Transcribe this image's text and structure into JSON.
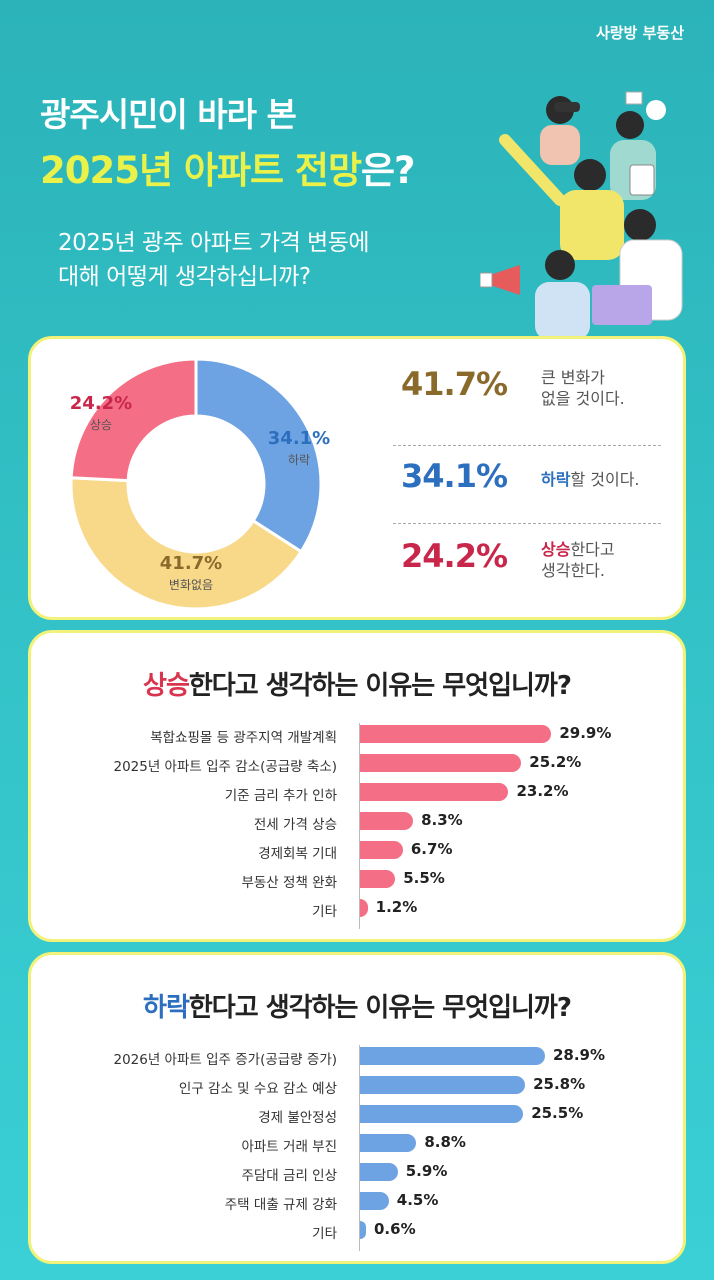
{
  "brand": {
    "prefix": "사랑방",
    "suffix": "부동산"
  },
  "header": {
    "title_line1": "광주시민이 바라 본",
    "title_line2_highlight": "2025년 아파트 전망",
    "title_line2_tail": "은?",
    "question_line1": "2025년 광주 아파트 가격 변동에",
    "question_line2": "대해 어떻게 생각하십니까?"
  },
  "colors": {
    "up": "#f46f86",
    "down": "#6ea3e3",
    "neutral": "#f8d98a",
    "stay_text": "#8a6a2b",
    "down_text": "#2c6fbf",
    "up_text": "#c8264a"
  },
  "chart_data": [
    {
      "type": "pie",
      "title": "2025년 광주 아파트 가격 변동에 대해 어떻게 생각하십니까?",
      "slices": [
        {
          "label": "하락",
          "value": 34.1,
          "display": "34.1%"
        },
        {
          "label": "변화없음",
          "value": 41.7,
          "display": "41.7%"
        },
        {
          "label": "상승",
          "value": 24.2,
          "display": "24.2%"
        }
      ]
    },
    {
      "type": "bar",
      "title": "상승한다고 생각하는 이유는 무엇입니까?",
      "categories": [
        "복합쇼핑몰 등 광주지역 개발계획",
        "2025년 아파트 입주 감소(공급량 축소)",
        "기준 금리 추가 인하",
        "전세 가격 상승",
        "경제회복 기대",
        "부동산 정책 완화",
        "기타"
      ],
      "values": [
        29.9,
        25.2,
        23.2,
        8.3,
        6.7,
        5.5,
        1.2
      ],
      "labels": [
        "29.9%",
        "25.2%",
        "23.2%",
        "8.3%",
        "6.7%",
        "5.5%",
        "1.2%"
      ]
    },
    {
      "type": "bar",
      "title": "하락한다고 생각하는 이유는 무엇입니까?",
      "categories": [
        "2026년 아파트 입주 증가(공급량 증가)",
        "인구 감소 및 수요 감소 예상",
        "경제 불안정성",
        "아파트 거래 부진",
        "주담대 금리 인상",
        "주택 대출 규제 강화",
        "기타"
      ],
      "values": [
        28.9,
        25.8,
        25.5,
        8.8,
        5.9,
        4.5,
        0.6
      ],
      "labels": [
        "28.9%",
        "25.8%",
        "25.5%",
        "8.8%",
        "5.9%",
        "4.5%",
        "0.6%"
      ]
    }
  ],
  "stats": [
    {
      "pct": "41.7%",
      "bold": "",
      "rest1": "큰 변화가",
      "rest2": "없을 것이다."
    },
    {
      "pct": "34.1%",
      "bold": "하락",
      "rest1": "할 것이다.",
      "rest2": ""
    },
    {
      "pct": "24.2%",
      "bold": "상승",
      "rest1": "한다고",
      "rest2": "생각한다."
    }
  ],
  "up_section": {
    "keyword": "상승",
    "rest": "한다고 생각하는 이유는 무엇입니까?"
  },
  "down_section": {
    "keyword": "하락",
    "rest": "한다고 생각하는 이유는 무엇입니까?"
  }
}
